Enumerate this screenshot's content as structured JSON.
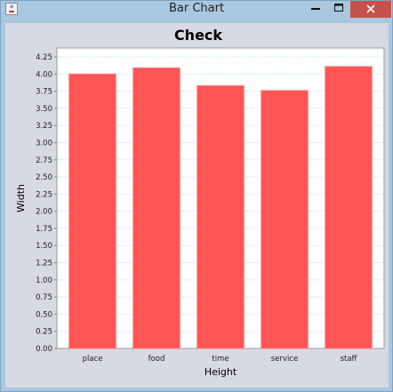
{
  "window": {
    "title": "Bar Chart"
  },
  "colors": {
    "bar": "#ff5555",
    "bar_edge": "#ff8080",
    "grid": "#c0e8f0",
    "plot_bg": "#ffffff",
    "panel_bg": "#d7d9e3",
    "titlebar": "#a9c7df",
    "close_button": "#c7504b"
  },
  "icons": {
    "app": "java-icon",
    "minimize": "minimize-icon",
    "maximize": "maximize-icon",
    "close": "close-icon"
  },
  "chart_data": {
    "type": "bar",
    "title": "Check",
    "xlabel": "Height",
    "ylabel": "Width",
    "categories": [
      "place",
      "food",
      "time",
      "service",
      "staff"
    ],
    "values": [
      4.0,
      4.09,
      3.83,
      3.76,
      4.11
    ],
    "ylim": [
      0,
      4.25
    ],
    "yticks": [
      "0.00",
      "0.25",
      "0.50",
      "0.75",
      "1.00",
      "1.25",
      "1.50",
      "1.75",
      "2.00",
      "2.25",
      "2.50",
      "2.75",
      "3.00",
      "3.25",
      "3.50",
      "3.75",
      "4.00",
      "4.25"
    ],
    "grid": true,
    "legend": "none"
  }
}
